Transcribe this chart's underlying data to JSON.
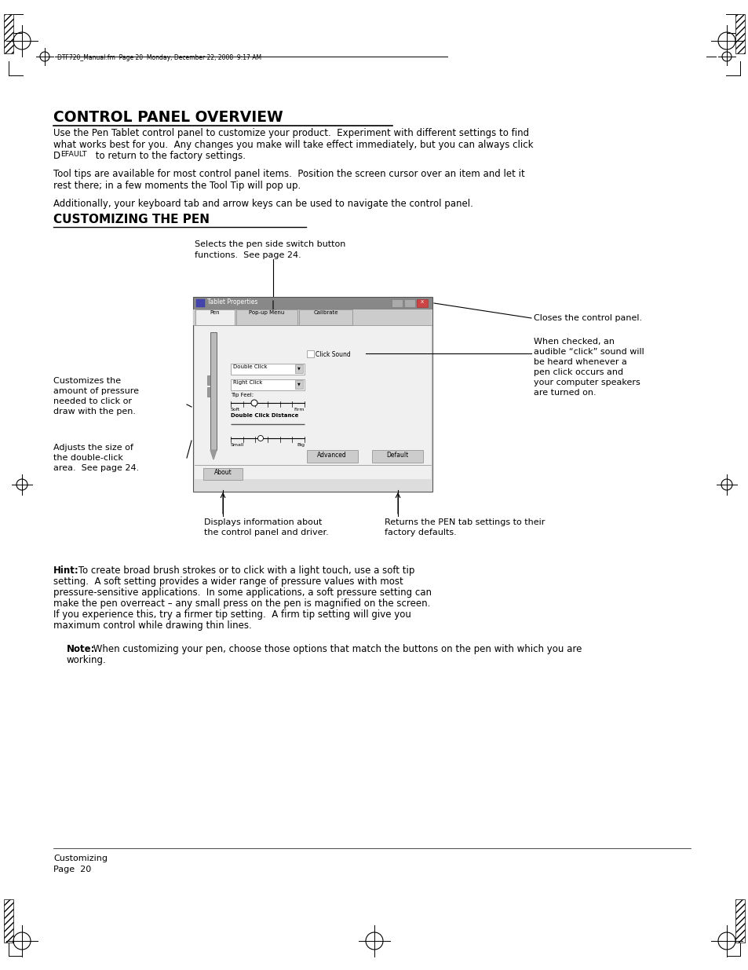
{
  "bg_color": "#ffffff",
  "page_width": 9.54,
  "page_height": 12.35,
  "header_text": "DTF720_Manual.fm  Page 20  Monday, December 22, 2008  9:17 AM",
  "title1": "CONTROL PANEL OVERVIEW",
  "para1_line1": "Use the Pen Tablet control panel to customize your product.  Experiment with different settings to find",
  "para1_line2": "what works best for you.  Any changes you make will take effect immediately, but you can always click",
  "para1_line3_pre": "D",
  "para1_line3_small": "EFAULT",
  "para1_line3_post": " to return to the factory settings.",
  "para2_line1": "Tool tips are available for most control panel items.  Position the screen cursor over an item and let it",
  "para2_line2": "rest there; in a few moments the Tool Tip will pop up.",
  "para3": "Additionally, your keyboard tab and arrow keys can be used to navigate the control panel.",
  "title2": "CUSTOMIZING THE PEN",
  "annotation_1_line1": "Selects the pen side switch button",
  "annotation_1_line2": "functions.  See page 24.",
  "annotation_2": "Closes the control panel.",
  "annotation_3_line1": "When checked, an",
  "annotation_3_line2": "audible “click” sound will",
  "annotation_3_line3": "be heard whenever a",
  "annotation_3_line4": "pen click occurs and",
  "annotation_3_line5": "your computer speakers",
  "annotation_3_line6": "are turned on.",
  "annotation_4_line1": "Customizes the",
  "annotation_4_line2": "amount of pressure",
  "annotation_4_line3": "needed to click or",
  "annotation_4_line4": "draw with the pen.",
  "annotation_5_line1": "Adjusts the size of",
  "annotation_5_line2": "the double-click",
  "annotation_5_line3": "area.  See page 24.",
  "annotation_6_line1": "Displays information about",
  "annotation_6_line2": "the control panel and driver.",
  "annotation_7_line1": "Returns the PEN tab settings to their",
  "annotation_7_line2": "factory defaults.",
  "hint_bold": "Hint:",
  "hint_rest": " To create broad brush strokes or to click with a light touch, use a soft tip",
  "hint_lines": [
    "setting.  A soft setting provides a wider range of pressure values with most",
    "pressure-sensitive applications.  In some applications, a soft pressure setting can",
    "make the pen overreact – any small press on the pen is magnified on the screen.",
    "If you experience this, try a firmer tip setting.  A firm tip setting will give you",
    "maximum control while drawing thin lines."
  ],
  "note_bold": "Note:",
  "note_line1": " When customizing your pen, choose those options that match the buttons on the pen with which you are",
  "note_line2": "working.",
  "footer_line1": "Customizing",
  "footer_line2": "Page  20",
  "dialog_title": "Tablet Properties",
  "tab1": "Pen",
  "tab2": "Pop-up Menu",
  "tab3": "Calibrate",
  "dd1": "Double Click",
  "dd2": "Right Click",
  "tip_feel": "Tip Feel:",
  "soft": "Soft",
  "firm": "Firm",
  "dcd": "Double Click Distance",
  "small_lbl": "Small",
  "big_lbl": "Big",
  "btn_advanced": "Advanced",
  "btn_default": "Default",
  "click_sound": "Click Sound",
  "btn_about": "About"
}
